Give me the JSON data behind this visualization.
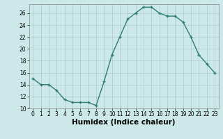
{
  "xlabel": "Humidex (Indice chaleur)",
  "ylabel": "",
  "x": [
    0,
    1,
    2,
    3,
    4,
    5,
    6,
    7,
    8,
    9,
    10,
    11,
    12,
    13,
    14,
    15,
    16,
    17,
    18,
    19,
    20,
    21,
    22,
    23
  ],
  "y": [
    15,
    14,
    14,
    13,
    11.5,
    11,
    11,
    11,
    10.5,
    14.5,
    19,
    22,
    25,
    26,
    27,
    27,
    26,
    25.5,
    25.5,
    24.5,
    22,
    19,
    17.5,
    16
  ],
  "ylim": [
    10,
    27
  ],
  "xlim": [
    -0.5,
    23.5
  ],
  "yticks": [
    10,
    12,
    14,
    16,
    18,
    20,
    22,
    24,
    26
  ],
  "xticks": [
    0,
    1,
    2,
    3,
    4,
    5,
    6,
    7,
    8,
    9,
    10,
    11,
    12,
    13,
    14,
    15,
    16,
    17,
    18,
    19,
    20,
    21,
    22,
    23
  ],
  "line_color": "#2e7d6e",
  "bg_color": "#cce8e8",
  "grid_color": "#aacaca",
  "tick_label_fontsize": 5.5,
  "axis_label_fontsize": 7.5
}
